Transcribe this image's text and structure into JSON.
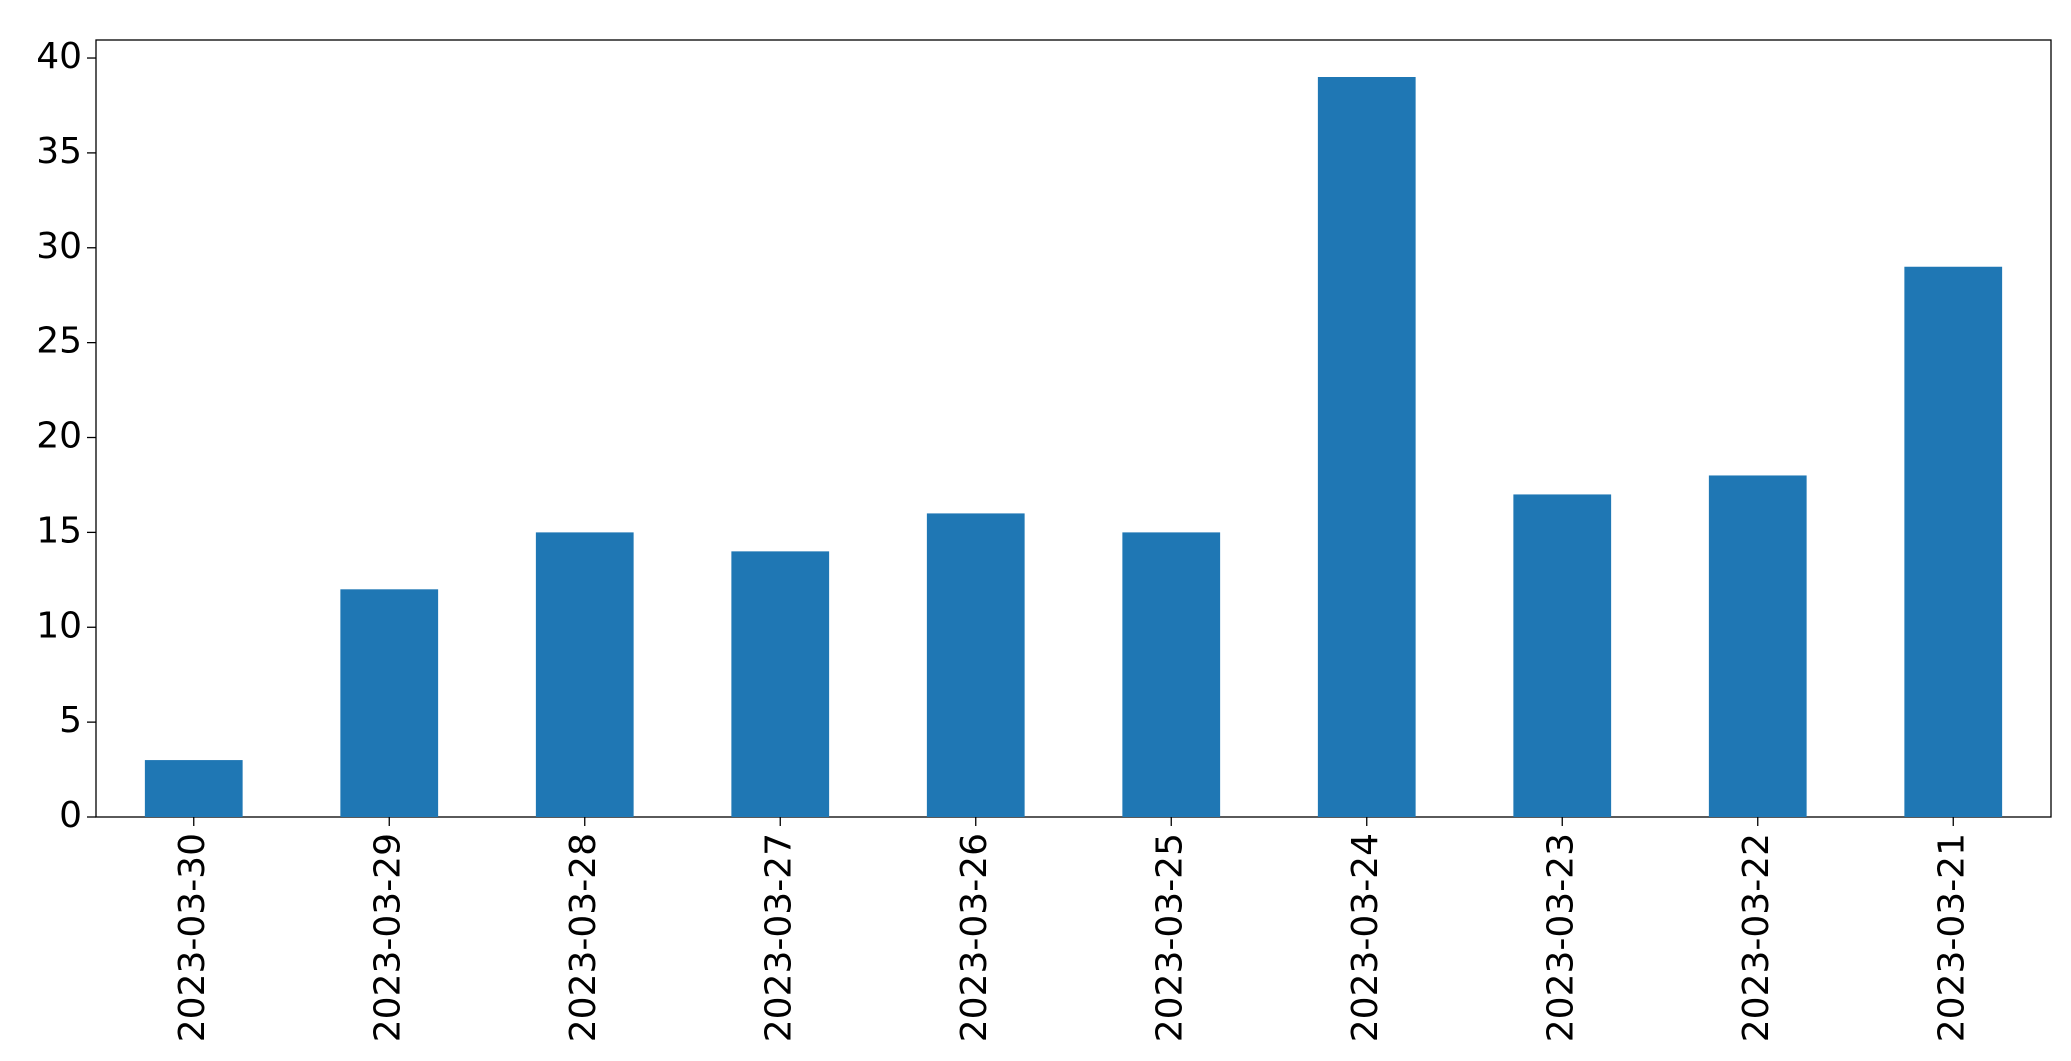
{
  "chart_data": {
    "type": "bar",
    "categories": [
      "2023-03-30",
      "2023-03-29",
      "2023-03-28",
      "2023-03-27",
      "2023-03-26",
      "2023-03-25",
      "2023-03-24",
      "2023-03-23",
      "2023-03-22",
      "2023-03-21"
    ],
    "values": [
      3,
      12,
      15,
      14,
      16,
      15,
      39,
      17,
      18,
      29
    ],
    "color": "#1f77b4",
    "ylim": [
      0,
      40.95
    ],
    "yticks": [
      0,
      5,
      10,
      15,
      20,
      25,
      30,
      35,
      40
    ],
    "grid": false
  }
}
